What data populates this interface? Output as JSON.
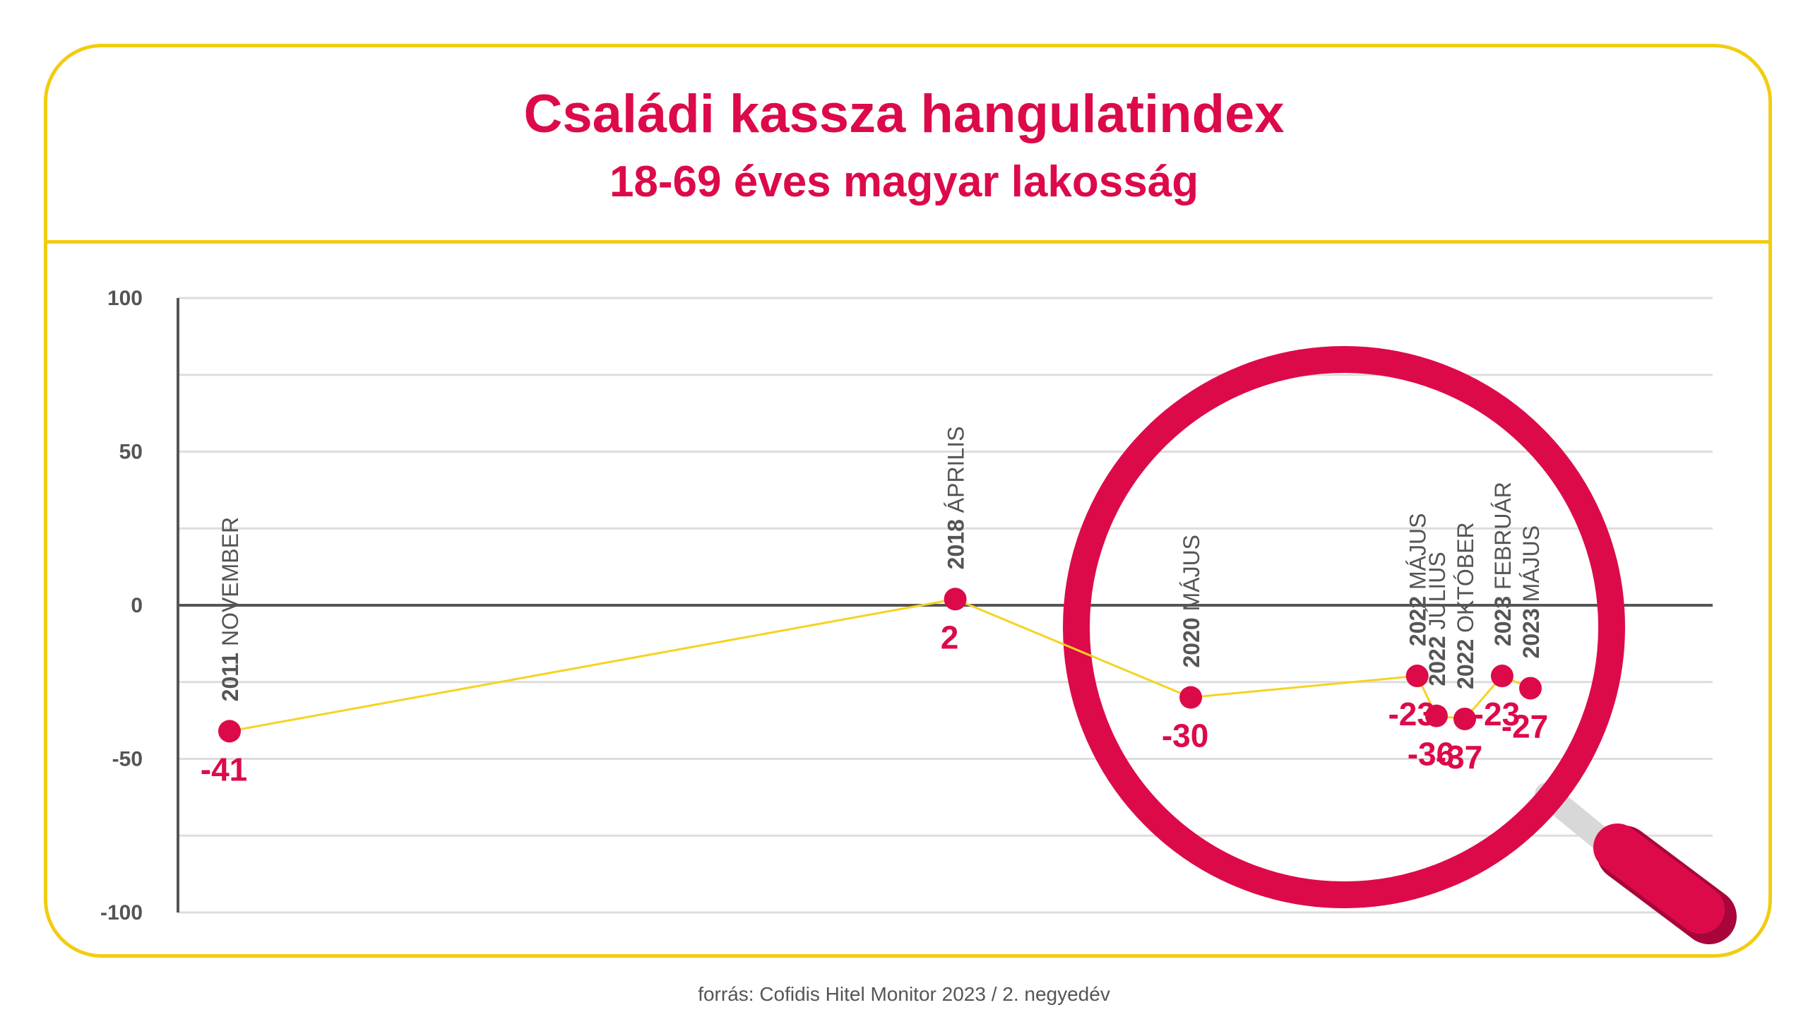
{
  "title": "Családi kassza hangulatindex",
  "subtitle": "18-69 éves magyar lakosság",
  "source": "forrás: Cofidis Hitel Monitor 2023 / 2. negyedév",
  "colors": {
    "accent": "#dd0a4a",
    "frame": "#f2cc11",
    "line": "#f5d322",
    "axis": "#555555",
    "grid": "#dddddd"
  },
  "icons": [
    "magnifier-icon"
  ],
  "chart_data": {
    "type": "line",
    "ylim": [
      -100,
      100
    ],
    "yticks": [
      100,
      50,
      0,
      -50,
      -100
    ],
    "grid": true,
    "points": [
      {
        "year": "2011",
        "month": "NOVEMBER",
        "value": -41,
        "label": "-41",
        "x": 2011.84
      },
      {
        "year": "2018",
        "month": "ÁPRILIS",
        "value": 2,
        "label": "2",
        "x": 2018.25
      },
      {
        "year": "2020",
        "month": "MÁJUS",
        "value": -30,
        "label": "-30",
        "x": 2020.33
      },
      {
        "year": "2022",
        "month": "MÁJUS",
        "value": -23,
        "label": "-23",
        "x": 2022.33
      },
      {
        "year": "2022",
        "month": "JÚLIUS",
        "value": -36,
        "label": "-36",
        "x": 2022.5
      },
      {
        "year": "2022",
        "month": "OKTÓBER",
        "value": -37,
        "label": "-37",
        "x": 2022.75
      },
      {
        "year": "2023",
        "month": "FEBRUÁR",
        "value": -23,
        "label": "-23",
        "x": 2023.08
      },
      {
        "year": "2023",
        "month": "MÁJUS",
        "value": -27,
        "label": "-27",
        "x": 2023.33
      }
    ]
  }
}
